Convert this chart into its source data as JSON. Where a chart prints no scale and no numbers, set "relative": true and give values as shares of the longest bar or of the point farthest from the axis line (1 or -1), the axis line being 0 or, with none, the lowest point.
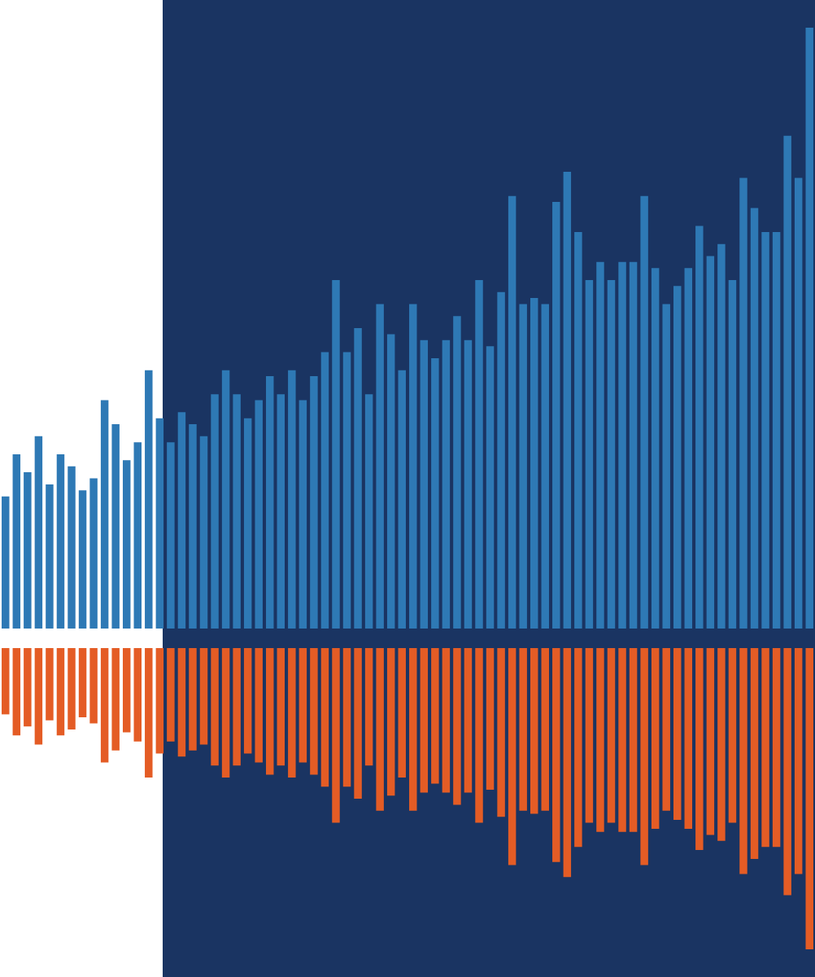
{
  "chart_data": [
    {
      "type": "bar",
      "relative": true,
      "categories": [
        null,
        null,
        null,
        null,
        null,
        null,
        null,
        null,
        null,
        null,
        null,
        null,
        null,
        null,
        null,
        null,
        null,
        null,
        null,
        null,
        null,
        null,
        null,
        null,
        null,
        null,
        null,
        null,
        null,
        null,
        null,
        null,
        null,
        null,
        null,
        null,
        null,
        null,
        null,
        null,
        null,
        null,
        null,
        null,
        null,
        null,
        null,
        null,
        null,
        null,
        null,
        null,
        null,
        null,
        null,
        null,
        null,
        null,
        null,
        null,
        null,
        null,
        null,
        null,
        null,
        null,
        null,
        null,
        null,
        null,
        null,
        null,
        null,
        null
      ],
      "series": [
        {
          "color": "#2e79b5",
          "values": [
            0.22,
            0.29,
            0.26,
            0.32,
            0.24,
            0.29,
            0.27,
            0.23,
            0.25,
            0.38,
            0.34,
            0.28,
            0.31,
            0.43,
            0.35,
            0.31,
            0.36,
            0.34,
            0.32,
            0.39,
            0.43,
            0.39,
            0.35,
            0.38,
            0.42,
            0.39,
            0.43,
            0.38,
            0.42,
            0.46,
            0.58,
            0.46,
            0.5,
            0.39,
            0.54,
            0.49,
            0.43,
            0.54,
            0.48,
            0.45,
            0.48,
            0.52,
            0.48,
            0.58,
            0.47,
            0.56,
            0.72,
            0.54,
            0.55,
            0.54,
            0.71,
            0.76,
            0.66,
            0.58,
            0.61,
            0.58,
            0.61,
            0.61,
            0.72,
            0.6,
            0.54,
            0.57,
            0.6,
            0.67,
            0.62,
            0.64,
            0.58,
            0.75,
            0.7,
            0.66,
            0.66,
            0.82,
            0.75,
            1
          ]
        }
      ]
    },
    {
      "type": "bar",
      "relative": true,
      "categories": [
        null,
        null,
        null,
        null,
        null,
        null,
        null,
        null,
        null,
        null,
        null,
        null,
        null,
        null,
        null,
        null,
        null,
        null,
        null,
        null,
        null,
        null,
        null,
        null,
        null,
        null,
        null,
        null,
        null,
        null,
        null,
        null,
        null,
        null,
        null,
        null,
        null,
        null,
        null,
        null,
        null,
        null,
        null,
        null,
        null,
        null,
        null,
        null,
        null,
        null,
        null,
        null,
        null,
        null,
        null,
        null,
        null,
        null,
        null,
        null,
        null,
        null,
        null,
        null,
        null,
        null,
        null,
        null,
        null,
        null,
        null,
        null,
        null,
        null
      ],
      "series": [
        {
          "color": "#e45c25",
          "values": [
            -0.22,
            -0.29,
            -0.26,
            -0.32,
            -0.24,
            -0.29,
            -0.27,
            -0.23,
            -0.25,
            -0.38,
            -0.34,
            -0.28,
            -0.31,
            -0.43,
            -0.35,
            -0.31,
            -0.36,
            -0.34,
            -0.32,
            -0.39,
            -0.43,
            -0.39,
            -0.35,
            -0.38,
            -0.42,
            -0.39,
            -0.43,
            -0.38,
            -0.42,
            -0.46,
            -0.58,
            -0.46,
            -0.5,
            -0.39,
            -0.54,
            -0.49,
            -0.43,
            -0.54,
            -0.48,
            -0.45,
            -0.48,
            -0.52,
            -0.48,
            -0.58,
            -0.47,
            -0.56,
            -0.72,
            -0.54,
            -0.55,
            -0.54,
            -0.71,
            -0.76,
            -0.66,
            -0.58,
            -0.61,
            -0.58,
            -0.61,
            -0.61,
            -0.72,
            -0.6,
            -0.54,
            -0.57,
            -0.6,
            -0.67,
            -0.62,
            -0.64,
            -0.58,
            -0.75,
            -0.7,
            -0.66,
            -0.66,
            -0.82,
            -0.75,
            -1
          ]
        }
      ]
    }
  ]
}
